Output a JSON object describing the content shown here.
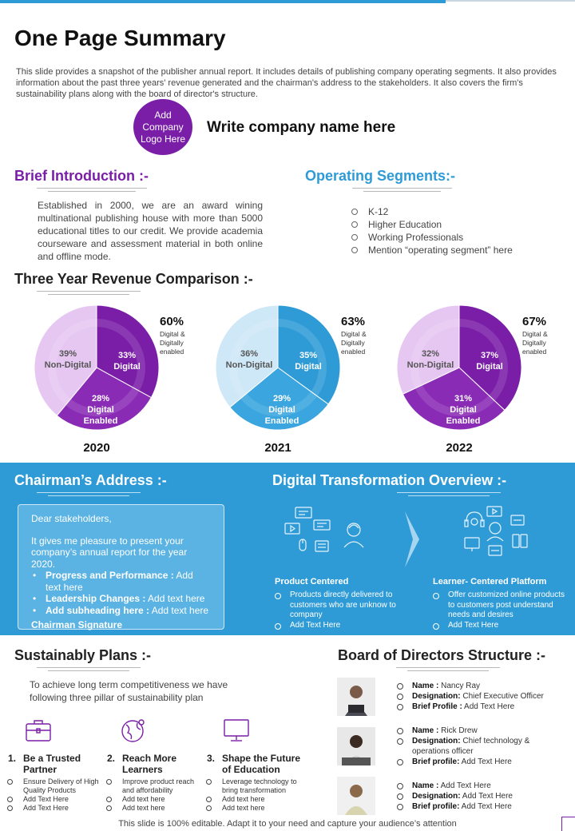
{
  "header": {
    "title": "One Page Summary",
    "intro": "This slide provides a snapshot of the publisher annual report. It includes details of publishing company operating segments. It also provides information about the past three years' revenue generated and the chairman's address to the stakeholders. It also covers the firm's sustainability plans along with the board of director's structure.",
    "logo_text": "Add Company Logo Here",
    "company_name": "Write company name here"
  },
  "brief_intro": {
    "heading": "Brief Introduction :-",
    "text": "Established in 2000, we are an award wining multinational publishing house with more than 5000 educational titles to our credit. We provide academia courseware and assessment material in both online and offline mode."
  },
  "operating_segments": {
    "heading": "Operating Segments:-",
    "items": [
      "K-12",
      "Higher Education",
      "Working Professionals",
      "Mention “operating segment” here"
    ]
  },
  "revenue": {
    "heading": "Three Year Revenue Comparison :-"
  },
  "chart_data": [
    {
      "type": "pie",
      "year": "2020",
      "headline_pct": "60%",
      "headline_label": "Digital & Digitally enabled",
      "slices": [
        {
          "pct": "33%",
          "label": "Digital",
          "value": 33,
          "color": "#7a1ea8"
        },
        {
          "pct": "28%",
          "label": "Digital Enabled",
          "value": 28,
          "color": "#8a2bb6"
        },
        {
          "pct": "39%",
          "label": "Non-Digital",
          "value": 39,
          "color": "#e6c7f2"
        }
      ]
    },
    {
      "type": "pie",
      "year": "2021",
      "headline_pct": "63%",
      "headline_label": "Digital & Digitally enabled",
      "slices": [
        {
          "pct": "35%",
          "label": "Digital",
          "value": 35,
          "color": "#2f9bd6"
        },
        {
          "pct": "29%",
          "label": "Digital Enabled",
          "value": 29,
          "color": "#3aa5de"
        },
        {
          "pct": "36%",
          "label": "Non-Digital",
          "value": 36,
          "color": "#cfe8f7"
        }
      ]
    },
    {
      "type": "pie",
      "year": "2022",
      "headline_pct": "67%",
      "headline_label": "Digital & Digitally enabled",
      "slices": [
        {
          "pct": "37%",
          "label": "Digital",
          "value": 37,
          "color": "#7a1ea8"
        },
        {
          "pct": "31%",
          "label": "Digital Enabled",
          "value": 31,
          "color": "#8a2bb6"
        },
        {
          "pct": "32%",
          "label": "Non-Digital",
          "value": 32,
          "color": "#e6c7f2"
        }
      ]
    }
  ],
  "chairman": {
    "heading": "Chairman’s Address :-",
    "greeting": "Dear stakeholders,",
    "body": "It gives me pleasure to present your company’s annual report for the year 2020.",
    "bullets": [
      {
        "bold": "Progress and Performance :",
        "rest": " Add text here"
      },
      {
        "bold": "Leadership Changes :",
        "rest": " Add text here"
      },
      {
        "bold": "Add subheading here :",
        "rest": " Add text here"
      }
    ],
    "signature": "Chairman Signature"
  },
  "digital_transformation": {
    "heading": "Digital Transformation Overview :-",
    "left": {
      "title": "Product Centered",
      "items": [
        "Products directly delivered to customers who are unknow to company",
        "Add Text Here"
      ]
    },
    "right": {
      "title": "Learner- Centered Platform",
      "items": [
        "Offer customized online products to customers post understand needs and desires",
        "Add Text Here"
      ]
    }
  },
  "sustainability": {
    "heading": "Sustainably Plans :-",
    "text": "To achieve long term competitiveness we have following three pillar of sustainability plan",
    "pillars": [
      {
        "num": "1.",
        "title": "Be a Trusted Partner",
        "icon": "briefcase-icon",
        "items": [
          "Ensure Delivery of High Quality Products",
          "Add Text Here",
          "Add Text Here"
        ]
      },
      {
        "num": "2.",
        "title": "Reach More Learners",
        "icon": "globe-icon",
        "items": [
          "Improve product reach and affordability",
          "Add text here",
          "Add text here"
        ]
      },
      {
        "num": "3.",
        "title": "Shape the Future of Education",
        "icon": "monitor-icon",
        "items": [
          "Leverage technology to bring transformation",
          "Add text here",
          "Add text here"
        ]
      }
    ]
  },
  "board": {
    "heading": "Board of Directors Structure :-",
    "directors": [
      {
        "name_label": "Name :",
        "name": " Nancy Ray",
        "designation_label": "Designation:",
        "designation": " Chief Executive Officer",
        "profile_label": "Brief Profile :",
        "profile": " Add Text Here"
      },
      {
        "name_label": "Name :",
        "name": " Rick Drew",
        "designation_label": "Designation:",
        "designation": " Chief technology & operations officer",
        "profile_label": "Brief profile:",
        "profile": " Add Text Here"
      },
      {
        "name_label": "Name :",
        "name": " Add Text Here",
        "designation_label": "Designation:",
        "designation": " Add Text Here",
        "profile_label": "Brief profile:",
        "profile": " Add Text Here"
      }
    ]
  },
  "footer": {
    "note": "This slide is 100% editable. Adapt it to your need and capture your audience’s attention"
  }
}
